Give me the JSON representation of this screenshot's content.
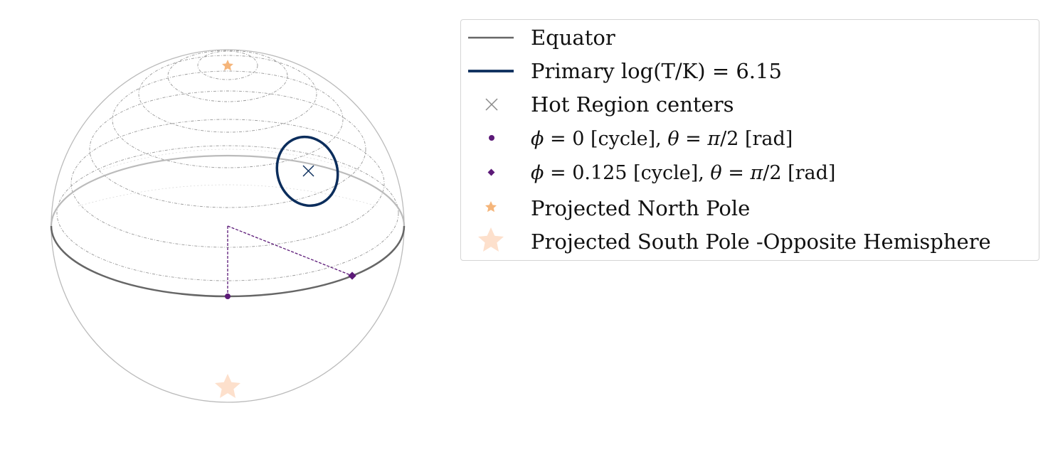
{
  "legend": {
    "items": [
      {
        "key": "equator",
        "label": "Equator",
        "color": "#666666",
        "marker": "line"
      },
      {
        "key": "primary",
        "label": "Primary log(T/K) = 6.15",
        "color": "#0b2d5c",
        "marker": "thick-line"
      },
      {
        "key": "hot_centers",
        "label": "Hot Region centers",
        "color": "#8a8a8a",
        "marker": "x"
      },
      {
        "key": "phi0",
        "label_parts": [
          "ϕ",
          " = 0 [cycle], ",
          "θ",
          " = ",
          "π",
          "/2 [rad]"
        ],
        "color": "#5c1a78",
        "marker": "dot"
      },
      {
        "key": "phi0125",
        "label_parts": [
          "ϕ",
          " = 0.125 [cycle], ",
          "θ",
          " = ",
          "π",
          "/2 [rad]"
        ],
        "color": "#5c1a78",
        "marker": "diamond"
      },
      {
        "key": "north",
        "label": "Projected North Pole",
        "color": "#f5b57a",
        "marker": "small-star"
      },
      {
        "key": "south",
        "label": "Projected South Pole  -Opposite Hemisphere",
        "color": "#fde0cc",
        "marker": "big-star"
      }
    ]
  },
  "diagram": {
    "sphere_outline_color": "#bbbbbb",
    "latitude_line_color": "#999999",
    "equator_front_color": "#666666",
    "equator_back_color": "#bbbbbb",
    "hot_region_color": "#0b2d5c",
    "path_color": "#5c1a78"
  }
}
